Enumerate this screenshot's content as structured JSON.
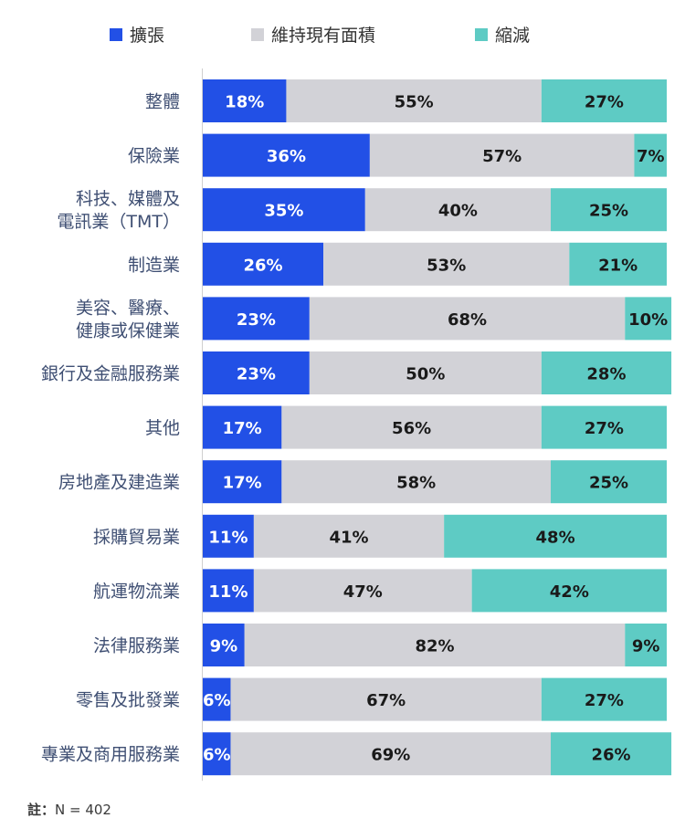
{
  "chart_data": {
    "type": "bar",
    "orientation": "horizontal",
    "stacked": true,
    "percent_stacked": true,
    "legend_position": "top",
    "grid": false,
    "xlim": [
      0,
      100
    ],
    "categories": [
      "整體",
      "保險業",
      "科技、媒體及\n電訊業（TMT）",
      "制造業",
      "美容、醫療、\n健康或保健業",
      "銀行及金融服務業",
      "其他",
      "房地產及建造業",
      "採購貿易業",
      "航運物流業",
      "法律服務業",
      "零售及批發業",
      "專業及商用服務業"
    ],
    "series": [
      {
        "name": "擴張",
        "color": "#2250e6",
        "values": [
          18,
          36,
          35,
          26,
          23,
          23,
          17,
          17,
          11,
          11,
          9,
          6,
          6
        ],
        "labels": [
          "18%",
          "36%",
          "35%",
          "26%",
          "23%",
          "23%",
          "17%",
          "17%",
          "11%",
          "11%",
          "9%",
          "6%",
          "6%"
        ]
      },
      {
        "name": "維持現有面積",
        "color": "#d2d2d7",
        "values": [
          55,
          57,
          40,
          53,
          68,
          50,
          56,
          58,
          41,
          47,
          82,
          67,
          69
        ],
        "labels": [
          "55%",
          "57%",
          "40%",
          "53%",
          "68%",
          "50%",
          "56%",
          "58%",
          "41%",
          "47%",
          "82%",
          "67%",
          "69%"
        ]
      },
      {
        "name": "縮減",
        "color": "#5ecbc4",
        "values": [
          27,
          7,
          25,
          21,
          10,
          28,
          27,
          25,
          48,
          42,
          9,
          27,
          26
        ],
        "labels": [
          "27%",
          "7%",
          "25%",
          "21%",
          "10%",
          "28%",
          "27%",
          "25%",
          "48%",
          "42%",
          "9%",
          "27%",
          "26%"
        ]
      }
    ]
  },
  "footnote": {
    "label": "註：",
    "text": "N = 402"
  }
}
